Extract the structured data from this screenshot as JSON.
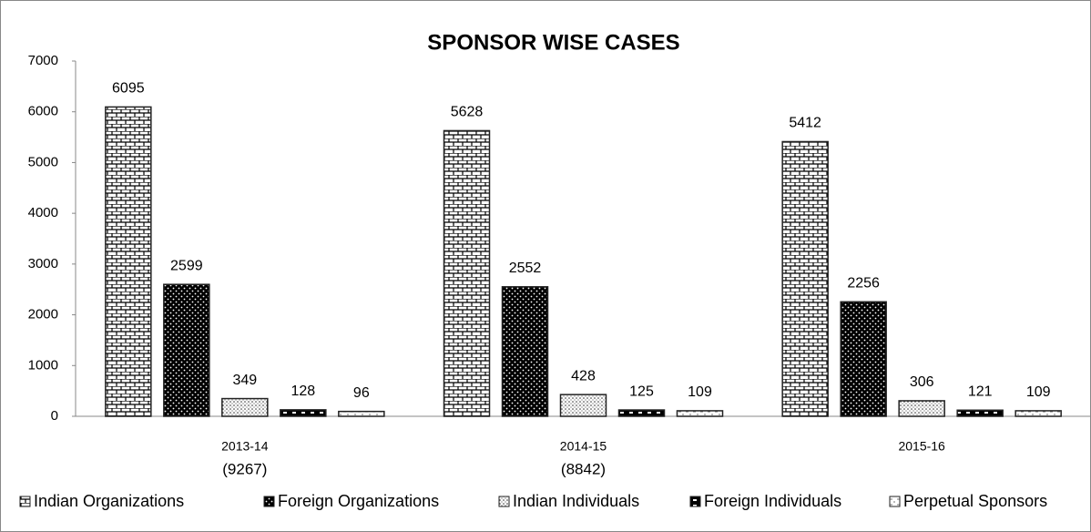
{
  "chart_data": {
    "type": "bar",
    "title": "SPONSOR WISE CASES",
    "categories": [
      "2013-14",
      "2014-15",
      "2015-16"
    ],
    "category_notes": [
      "(9267)",
      "(8842)",
      null
    ],
    "series": [
      {
        "name": "Indian Organizations",
        "color": "#ffffff",
        "pattern": "brick",
        "values": [
          6095,
          5628,
          5412
        ]
      },
      {
        "name": "Foreign Organizations",
        "color": "#000000",
        "pattern": "dots-dark",
        "values": [
          2599,
          2552,
          2256
        ]
      },
      {
        "name": "Indian Individuals",
        "color": "#ffffff",
        "pattern": "dots-light",
        "values": [
          349,
          428,
          306
        ]
      },
      {
        "name": "Foreign Individuals",
        "color": "#000000",
        "pattern": "dashes",
        "values": [
          128,
          125,
          121
        ]
      },
      {
        "name": "Perpetual Sponsors",
        "color": "#ffffff",
        "pattern": "light",
        "values": [
          96,
          109,
          109
        ]
      }
    ],
    "ylim": [
      0,
      7000
    ],
    "yticks": [
      0,
      1000,
      2000,
      3000,
      4000,
      5000,
      6000,
      7000
    ],
    "legend": "bottom",
    "grid": false
  }
}
